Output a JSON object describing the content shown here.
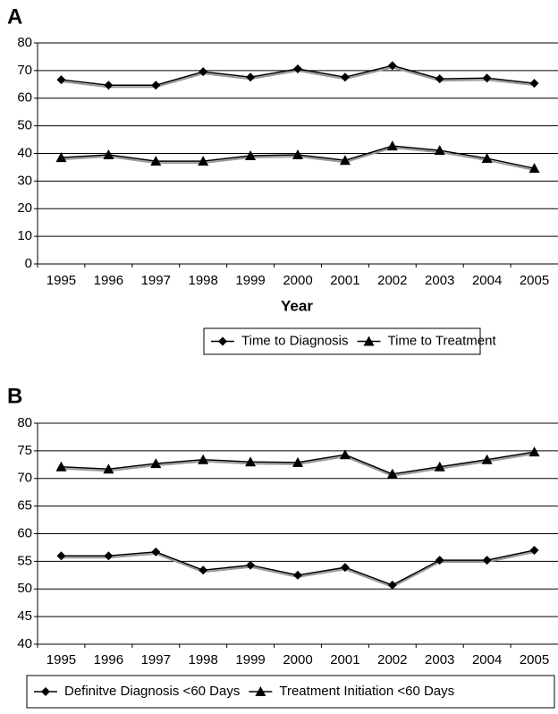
{
  "chart_data": [
    {
      "type": "line",
      "panel": "A",
      "x_label": "Year",
      "categories": [
        "1995",
        "1996",
        "1997",
        "1998",
        "1999",
        "2000",
        "2001",
        "2002",
        "2003",
        "2004",
        "2005"
      ],
      "series": [
        {
          "name": "Time to Diagnosis",
          "color": "#000000",
          "marker": "diamond",
          "values": [
            66.7,
            64.7,
            64.7,
            69.6,
            67.6,
            70.6,
            67.6,
            71.8,
            67,
            67.3,
            65.4
          ]
        },
        {
          "name": "Time to Treatment",
          "color": "#000000",
          "marker": "triangle",
          "values": [
            38.5,
            39.5,
            37.2,
            37.2,
            39.2,
            39.5,
            37.5,
            42.7,
            41.1,
            38.2,
            34.6
          ]
        }
      ],
      "ylim": [
        0,
        80
      ],
      "yticks": [
        0,
        10,
        20,
        30,
        40,
        50,
        60,
        70,
        80
      ],
      "grid": true,
      "legend": "bottom"
    },
    {
      "type": "line",
      "panel": "B",
      "categories": [
        "1995",
        "1996",
        "1997",
        "1998",
        "1999",
        "2000",
        "2001",
        "2002",
        "2003",
        "2004",
        "2005"
      ],
      "series": [
        {
          "name": "Definitve Diagnosis <60 Days",
          "color": "#000000",
          "marker": "diamond",
          "values": [
            56,
            56,
            56.7,
            53.4,
            54.3,
            52.5,
            53.9,
            50.7,
            55.2,
            55.2,
            57
          ]
        },
        {
          "name": "Treatment Initiation <60 Days",
          "color": "#000000",
          "marker": "triangle",
          "values": [
            72.1,
            71.7,
            72.7,
            73.4,
            73,
            72.9,
            74.3,
            70.8,
            72.1,
            73.4,
            74.8
          ]
        }
      ],
      "ylim": [
        40,
        80
      ],
      "yticks": [
        40,
        45,
        50,
        55,
        60,
        65,
        70,
        75,
        80
      ],
      "grid": true,
      "legend": "bottom"
    }
  ]
}
